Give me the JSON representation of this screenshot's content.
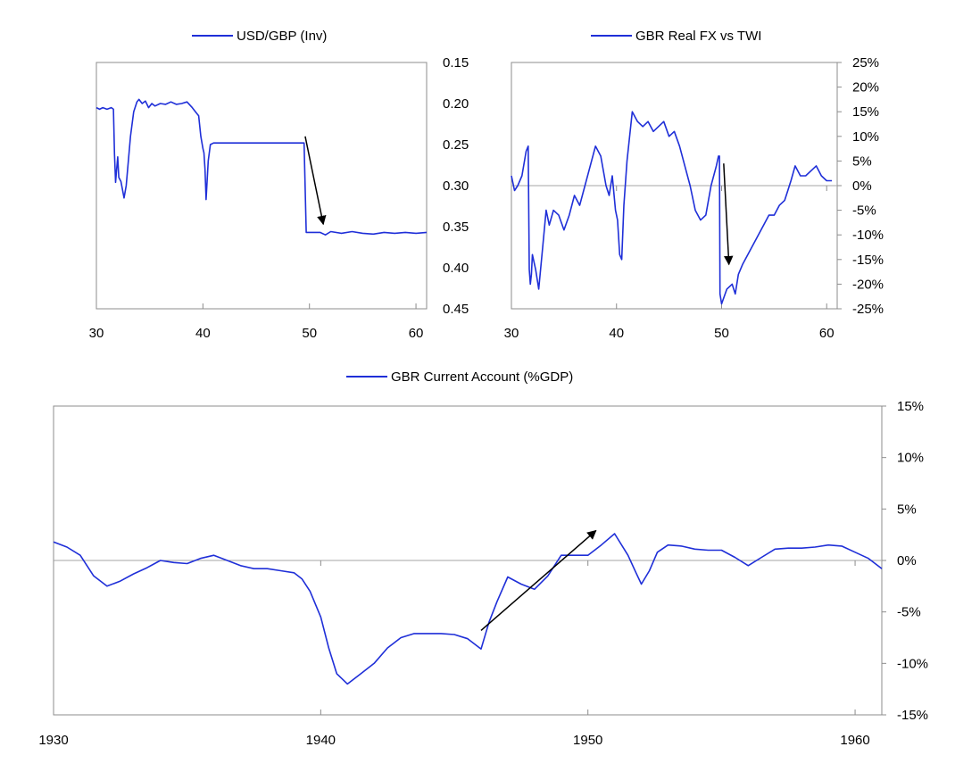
{
  "colors": {
    "series": "#1f2fd8",
    "arrow": "#000000",
    "axis": "#8c8c8c"
  },
  "chart_data": [
    {
      "id": "usdgbp",
      "type": "line",
      "title": "",
      "legend": "USD/GBP (Inv)",
      "legend_placement": "top",
      "series": [
        {
          "name": "USD/GBP (Inv)",
          "x": [
            30,
            30.3,
            30.6,
            31.0,
            31.4,
            31.6,
            31.7,
            31.8,
            31.9,
            32.0,
            32.1,
            32.3,
            32.6,
            32.8,
            33.0,
            33.2,
            33.5,
            33.8,
            34.0,
            34.3,
            34.6,
            34.9,
            35.2,
            35.5,
            36.0,
            36.5,
            37.0,
            37.5,
            38.0,
            38.5,
            39.0,
            39.3,
            39.6,
            39.8,
            40.0,
            40.1,
            40.2,
            40.3,
            40.5,
            40.7,
            41,
            44,
            47,
            49.5,
            49.7,
            50.5,
            51.0,
            51.5,
            52.0,
            53.0,
            54.0,
            55.0,
            56.0,
            57.0,
            58.0,
            59.0,
            60.0,
            61.0
          ],
          "y": [
            0.205,
            0.207,
            0.205,
            0.207,
            0.205,
            0.207,
            0.262,
            0.296,
            0.28,
            0.265,
            0.29,
            0.295,
            0.315,
            0.3,
            0.27,
            0.24,
            0.21,
            0.198,
            0.195,
            0.2,
            0.197,
            0.205,
            0.2,
            0.203,
            0.2,
            0.201,
            0.198,
            0.201,
            0.2,
            0.198,
            0.205,
            0.21,
            0.215,
            0.24,
            0.255,
            0.26,
            0.28,
            0.317,
            0.27,
            0.25,
            0.248,
            0.248,
            0.248,
            0.248,
            0.357,
            0.357,
            0.357,
            0.36,
            0.356,
            0.358,
            0.356,
            0.358,
            0.359,
            0.357,
            0.358,
            0.357,
            0.358,
            0.357
          ]
        }
      ],
      "x_ticks": [
        "30",
        "40",
        "50",
        "60"
      ],
      "x_tick_values": [
        30,
        40,
        50,
        60
      ],
      "xlim": [
        30,
        61
      ],
      "y_ticks": [
        "0.15",
        "0.20",
        "0.25",
        "0.30",
        "0.35",
        "0.40",
        "0.45"
      ],
      "y_tick_values": [
        0.15,
        0.2,
        0.25,
        0.3,
        0.35,
        0.4,
        0.45
      ],
      "ylim": [
        0.15,
        0.45
      ],
      "y_inverted": true,
      "y_axis_side": "right",
      "annotation": {
        "type": "arrow",
        "from": [
          49.6,
          0.24
        ],
        "to": [
          51.3,
          0.347
        ]
      }
    },
    {
      "id": "realfx",
      "type": "line",
      "title": "",
      "legend": "GBR Real FX vs TWI",
      "legend_placement": "top",
      "series": [
        {
          "name": "GBR Real FX vs TWI",
          "x": [
            30,
            30.3,
            30.6,
            31.0,
            31.4,
            31.6,
            31.7,
            31.8,
            31.9,
            32.0,
            32.3,
            32.6,
            33.0,
            33.3,
            33.6,
            34.0,
            34.5,
            35.0,
            35.5,
            36.0,
            36.5,
            37.0,
            37.5,
            38.0,
            38.5,
            39.0,
            39.3,
            39.6,
            39.9,
            40.1,
            40.3,
            40.5,
            40.7,
            41,
            41.5,
            42,
            42.5,
            43,
            43.5,
            44,
            44.5,
            45,
            45.5,
            46,
            46.5,
            47,
            47.5,
            48,
            48.5,
            49,
            49.5,
            49.7,
            49.8,
            49.85,
            50.0,
            50.5,
            51.0,
            51.3,
            51.6,
            52.0,
            52.5,
            53,
            53.5,
            54,
            54.5,
            55,
            55.5,
            56,
            56.3,
            56.6,
            57,
            57.5,
            58,
            58.5,
            59,
            59.5,
            60,
            60.5
          ],
          "y": [
            2,
            -1,
            0,
            2,
            7,
            8,
            -17,
            -20,
            -18,
            -14,
            -17,
            -21,
            -12,
            -5,
            -8,
            -5,
            -6,
            -9,
            -6,
            -2,
            -4,
            0,
            4,
            8,
            6,
            0,
            -2,
            2,
            -5,
            -7,
            -14,
            -15,
            -4,
            5,
            15,
            13,
            12,
            13,
            11,
            12,
            13,
            10,
            11,
            8,
            4,
            0,
            -5,
            -7,
            -6,
            0,
            4,
            6,
            6,
            -22,
            -24,
            -21,
            -20,
            -22,
            -18,
            -16,
            -14,
            -12,
            -10,
            -8,
            -6,
            -6,
            -4,
            -3,
            -1,
            1,
            4,
            2,
            2,
            3,
            4,
            2,
            1,
            1
          ]
        }
      ],
      "x_ticks": [
        "30",
        "40",
        "50",
        "60"
      ],
      "x_tick_values": [
        30,
        40,
        50,
        60
      ],
      "xlim": [
        30,
        61
      ],
      "y_ticks": [
        "25%",
        "20%",
        "15%",
        "10%",
        "5%",
        "0%",
        "-5%",
        "-10%",
        "-15%",
        "-20%",
        "-25%"
      ],
      "y_tick_values": [
        25,
        20,
        15,
        10,
        5,
        0,
        -5,
        -10,
        -15,
        -20,
        -25
      ],
      "ylim": [
        -25,
        25
      ],
      "y_axis_side": "right",
      "annotation": {
        "type": "arrow",
        "from": [
          50.2,
          4.5
        ],
        "to": [
          50.7,
          -16
        ]
      }
    },
    {
      "id": "currentaccount",
      "type": "line",
      "title": "",
      "legend": "GBR Current Account (%GDP)",
      "legend_placement": "top",
      "series": [
        {
          "name": "GBR Current Account (%GDP)",
          "x": [
            1930,
            1930.5,
            1931,
            1931.5,
            1932,
            1932.5,
            1933,
            1933.5,
            1934,
            1934.5,
            1935,
            1935.5,
            1936,
            1936.5,
            1937,
            1937.5,
            1938,
            1938.5,
            1939,
            1939.3,
            1939.6,
            1940,
            1940.3,
            1940.6,
            1941,
            1941.5,
            1942,
            1942.5,
            1943,
            1943.5,
            1944,
            1944.5,
            1945,
            1945.5,
            1946,
            1946.3,
            1946.6,
            1947,
            1947.5,
            1948,
            1948.5,
            1949,
            1949.5,
            1950,
            1950.5,
            1951,
            1951.5,
            1951.8,
            1952,
            1952.3,
            1952.6,
            1953,
            1953.5,
            1954,
            1954.5,
            1955,
            1955.5,
            1956,
            1956.5,
            1957,
            1957.5,
            1958,
            1958.5,
            1959,
            1959.5,
            1960,
            1960.5,
            1961
          ],
          "y": [
            1.8,
            1.3,
            0.5,
            -1.5,
            -2.5,
            -2.0,
            -1.3,
            -0.7,
            0,
            -0.2,
            -0.3,
            0.2,
            0.5,
            0,
            -0.5,
            -0.8,
            -0.8,
            -1,
            -1.2,
            -1.8,
            -3.0,
            -5.5,
            -8.5,
            -11,
            -12,
            -11,
            -10,
            -8.5,
            -7.5,
            -7.1,
            -7.1,
            -7.1,
            -7.2,
            -7.6,
            -8.6,
            -6,
            -4,
            -1.6,
            -2.3,
            -2.8,
            -1.5,
            0.5,
            0.5,
            0.5,
            1.5,
            2.6,
            0.5,
            -1.2,
            -2.3,
            -1,
            0.8,
            1.5,
            1.4,
            1.1,
            1.0,
            1.0,
            0.3,
            -0.5,
            0.3,
            1.1,
            1.2,
            1.2,
            1.3,
            1.5,
            1.4,
            0.8,
            0.2,
            -0.8
          ]
        }
      ],
      "x_ticks": [
        "1930",
        "1940",
        "1950",
        "1960"
      ],
      "x_tick_values": [
        1930,
        1940,
        1950,
        1960
      ],
      "xlim": [
        1930,
        1961
      ],
      "y_ticks": [
        "15%",
        "10%",
        "5%",
        "0%",
        "-5%",
        "-10%",
        "-15%"
      ],
      "y_tick_values": [
        15,
        10,
        5,
        0,
        -5,
        -10,
        -15
      ],
      "ylim": [
        -15,
        15
      ],
      "y_axis_side": "right",
      "annotation": {
        "type": "arrow",
        "from": [
          1946,
          -6.8
        ],
        "to": [
          1950.3,
          2.9
        ]
      }
    }
  ]
}
